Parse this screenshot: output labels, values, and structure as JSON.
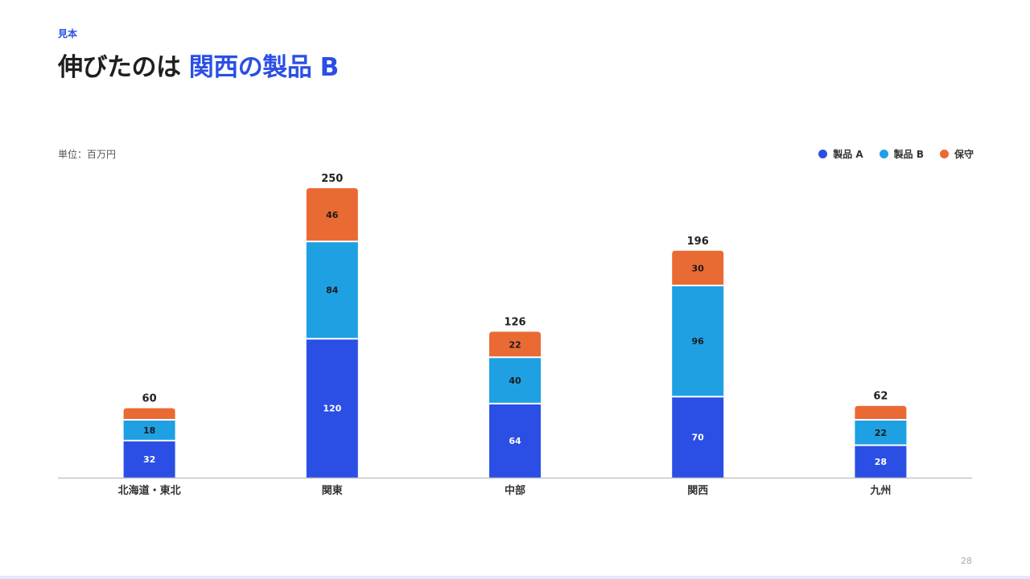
{
  "eyebrow": "見本",
  "title": {
    "prefix": "伸びたのは ",
    "accent": "関西の製品 B"
  },
  "page_number": "28",
  "colors": {
    "accent": "#2B4FE5",
    "series": [
      "#2B4FE5",
      "#1EA0E3",
      "#EA6A34"
    ]
  },
  "chart_data": {
    "type": "bar",
    "stacked": true,
    "unit_label": "単位：百万円",
    "categories": [
      "北海道・東北",
      "関東",
      "中部",
      "関西",
      "九州"
    ],
    "series": [
      {
        "name": "製品 A",
        "values": [
          32,
          120,
          64,
          70,
          28
        ]
      },
      {
        "name": "製品 B",
        "values": [
          18,
          84,
          40,
          96,
          22
        ]
      },
      {
        "name": "保守",
        "values": [
          10,
          46,
          22,
          30,
          12
        ]
      }
    ],
    "series_value_labels": [
      [
        "32",
        "120",
        "64",
        "70",
        "28"
      ],
      [
        "18",
        "84",
        "40",
        "96",
        "22"
      ],
      [
        "",
        "46",
        "22",
        "30",
        ""
      ]
    ],
    "totals": [
      60,
      250,
      126,
      196,
      62
    ],
    "ylim": [
      0,
      250
    ],
    "legend_position": "top-right",
    "grid": false
  }
}
